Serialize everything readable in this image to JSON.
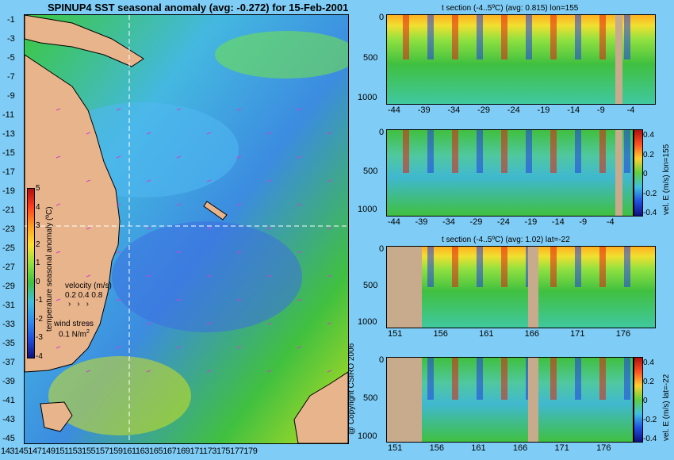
{
  "title": "SPINUP4 SST seasonal anomaly (avg: -0.272) for 15-Feb-2001",
  "copyright": "@ Copyright CSIRO 2006",
  "colors": {
    "background": "#7fcdf6",
    "land": "#e8b48c",
    "land_section": "#c8aa8c",
    "grid_line": "#ffffff",
    "vector": "#d040d0"
  },
  "map": {
    "lat_ticks": [
      "-1",
      "-3",
      "-5",
      "-7",
      "-9",
      "-11",
      "-13",
      "-15",
      "-17",
      "-19",
      "-21",
      "-23",
      "-25",
      "-27",
      "-29",
      "-31",
      "-33",
      "-35",
      "-37",
      "-39",
      "-41",
      "-43",
      "-45"
    ],
    "lon_ticks_text": "143145147149151153155157159161163165167169171173175177179",
    "crosshair": {
      "lon": 155,
      "lat": -22
    },
    "colorbar": {
      "ticks": [
        "5",
        "4",
        "3",
        "2",
        "1",
        "0",
        "-1",
        "-2",
        "-3",
        "-4"
      ],
      "label": "temperature seasonal anomaly (ºC)"
    },
    "velocity_legend": {
      "label": "velocity (m/s)",
      "scale": "0.2 0.4 0.8",
      "wind_label": "wind stress",
      "wind_scale": "0.1 N/m"
    }
  },
  "panels": [
    {
      "id": "t-section-lon",
      "title": "t section (-4..5ºC) (avg: 0.815) lon=155",
      "y_ticks": [
        "0",
        "500",
        "1000"
      ],
      "x_ticks": [
        "-44",
        "-39",
        "-34",
        "-29",
        "-24",
        "-19",
        "-14",
        "-9",
        "-4"
      ],
      "colorbar": null
    },
    {
      "id": "vel-e-lon",
      "title": "",
      "y_ticks": [
        "0",
        "500",
        "1000"
      ],
      "x_ticks": [
        "-44",
        "-39",
        "-34",
        "-29",
        "-24",
        "-19",
        "-14",
        "-9",
        "-4"
      ],
      "colorbar": {
        "ticks": [
          "0.4",
          "0.2",
          "0",
          "-0.2",
          "-0.4"
        ],
        "label": "vel. E (m/s) lon=155"
      }
    },
    {
      "id": "t-section-lat",
      "title": "t section (-4..5ºC) (avg: 1.02) lat=-22",
      "y_ticks": [
        "0",
        "500",
        "1000"
      ],
      "x_ticks": [
        "151",
        "156",
        "161",
        "166",
        "171",
        "176"
      ],
      "colorbar": null
    },
    {
      "id": "vel-e-lat",
      "title": "",
      "y_ticks": [
        "0",
        "500",
        "1000"
      ],
      "x_ticks": [
        "151",
        "156",
        "161",
        "166",
        "171",
        "176"
      ],
      "colorbar": {
        "ticks": [
          "0.4",
          "0.2",
          "0",
          "-0.2",
          "-0.4"
        ],
        "label": "vel. E (m/s) lat=-22"
      }
    }
  ],
  "chart_data": [
    {
      "type": "heatmap",
      "title": "SPINUP4 SST seasonal anomaly (avg: -0.272) for 15-Feb-2001",
      "xlabel": "",
      "ylabel": "",
      "x_range": [
        142,
        180
      ],
      "y_range": [
        -46,
        0
      ],
      "color_range": [
        -4,
        5
      ],
      "colorbar_label": "temperature seasonal anomaly (ºC)"
    },
    {
      "type": "heatmap",
      "title": "t section (-4..5ºC) (avg: 0.815) lon=155",
      "x_range": [
        -46,
        -1
      ],
      "y_range": [
        1050,
        0
      ],
      "x_ticks": [
        -44,
        -39,
        -34,
        -29,
        -24,
        -19,
        -14,
        -9,
        -4
      ],
      "y_ticks": [
        0,
        500,
        1000
      ]
    },
    {
      "type": "heatmap",
      "title": "",
      "x_range": [
        -46,
        -1
      ],
      "y_range": [
        1050,
        0
      ],
      "x_ticks": [
        -44,
        -39,
        -34,
        -29,
        -24,
        -19,
        -14,
        -9,
        -4
      ],
      "y_ticks": [
        0,
        500,
        1000
      ],
      "color_range": [
        -0.4,
        0.4
      ],
      "colorbar_label": "vel. E (m/s) lon=155"
    },
    {
      "type": "heatmap",
      "title": "t section (-4..5ºC) (avg: 1.02) lat=-22",
      "x_range": [
        150,
        180
      ],
      "y_range": [
        1050,
        0
      ],
      "x_ticks": [
        151,
        156,
        161,
        166,
        171,
        176
      ],
      "y_ticks": [
        0,
        500,
        1000
      ]
    },
    {
      "type": "heatmap",
      "title": "",
      "x_range": [
        150,
        180
      ],
      "y_range": [
        1050,
        0
      ],
      "x_ticks": [
        151,
        156,
        161,
        166,
        171,
        176
      ],
      "y_ticks": [
        0,
        500,
        1000
      ],
      "color_range": [
        -0.4,
        0.4
      ],
      "colorbar_label": "vel. E (m/s) lat=-22"
    }
  ]
}
